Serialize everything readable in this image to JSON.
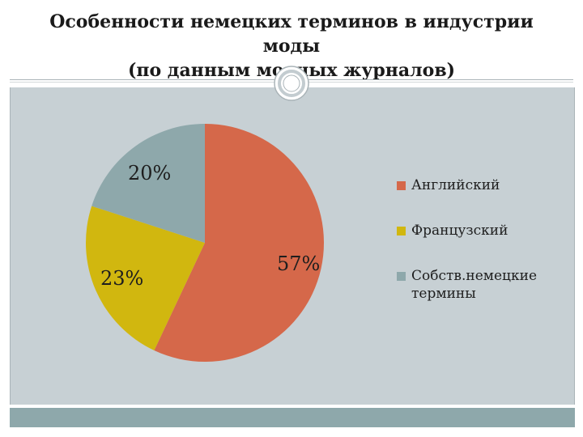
{
  "slide": {
    "title_line1": "Особенности немецких  терминов в индустрии",
    "title_line2": "моды",
    "title_line3": "(по данным модных журналов)"
  },
  "colors": {
    "panel": "#c7d0d4",
    "footer": "#8ea8ab"
  },
  "chart_data": {
    "type": "pie",
    "slices": [
      {
        "name": "Английский",
        "value": 57,
        "label": "57%",
        "color": "#d5684a"
      },
      {
        "name": "Французский",
        "value": 23,
        "label": "23%",
        "color": "#d1b70f"
      },
      {
        "name": "Собств.немецкие термины",
        "value": 20,
        "label": "20%",
        "color": "#8ea8ab"
      }
    ],
    "start": "12 o'clock",
    "direction": "clockwise",
    "legend": "right"
  }
}
